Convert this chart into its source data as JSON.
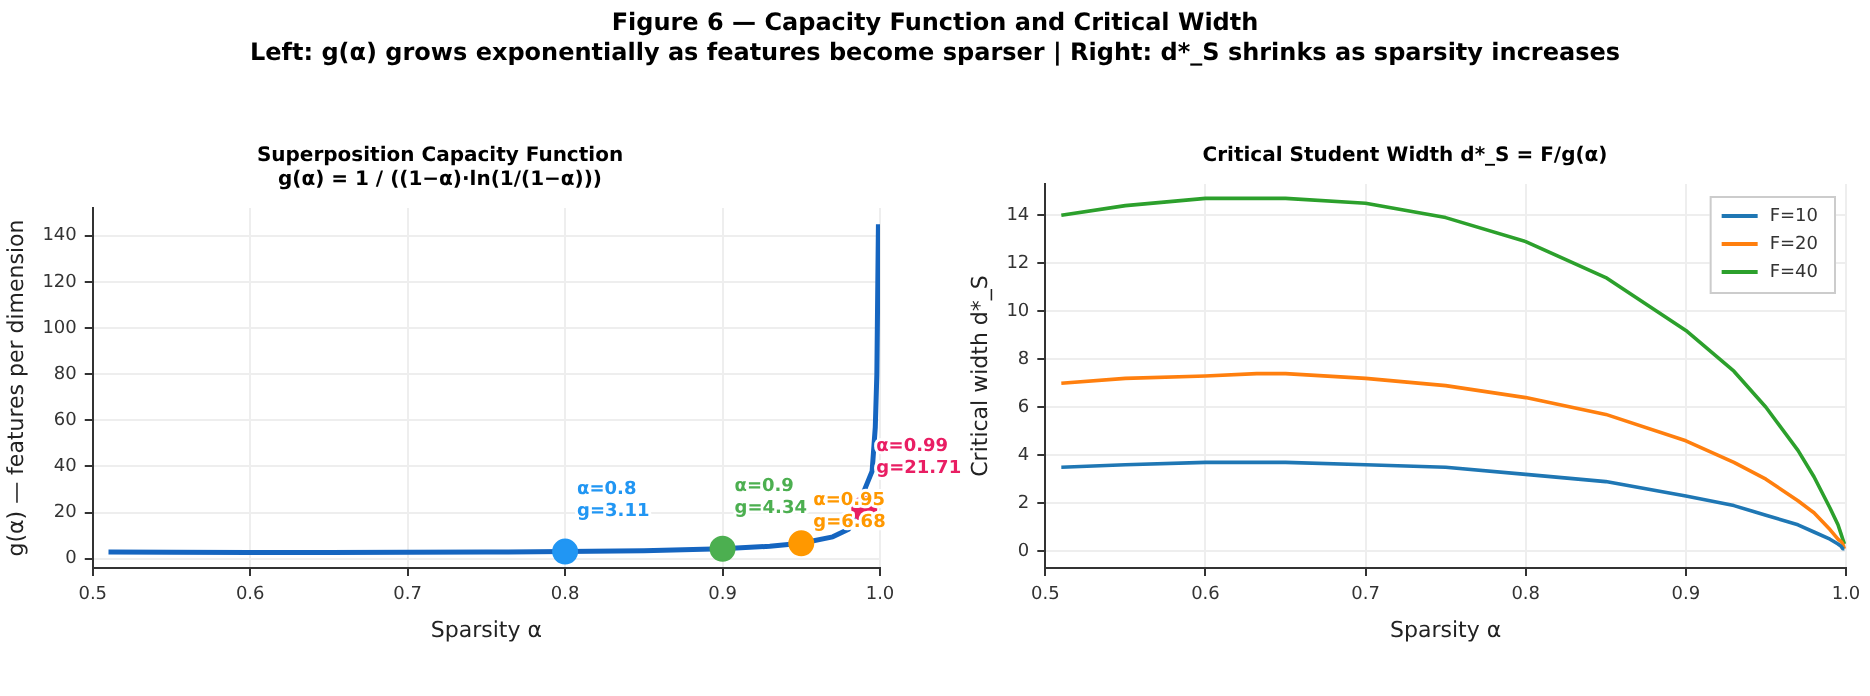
{
  "chart_data": [
    {
      "type": "line",
      "title": "Superposition Capacity Function\ng(α) = 1 / ((1−α)·ln(1/(1−α)))",
      "xlabel": "Sparsity α",
      "ylabel": "g(α) — features per dimension",
      "annotations": [
        "Figure 6 — Capacity Function and Critical Width",
        "Left: g(α) grows exponentially as features become sparser  |  Right: d*_S shrinks as sparsity increases"
      ],
      "series": [
        {
          "type": "line",
          "color": "#1565c0",
          "x": [
            0.51,
            0.55,
            0.6,
            0.632,
            0.65,
            0.7,
            0.75,
            0.8,
            0.85,
            0.9,
            0.93,
            0.95,
            0.97,
            0.98,
            0.995,
            0.997,
            0.998,
            0.999
          ],
          "values": [
            2.9,
            2.8,
            2.7,
            2.7,
            2.7,
            2.8,
            2.9,
            3.1,
            3.5,
            4.3,
            5.4,
            6.7,
            9.5,
            12.8,
            38,
            57,
            80,
            145
          ]
        },
        {
          "type": "scatter",
          "marker": "circle",
          "x": [
            0.8,
            0.9,
            0.95,
            0.99
          ],
          "values": [
            3.11,
            4.34,
            6.68,
            21.71
          ],
          "colors": [
            "#2196f3",
            "#4caf50",
            "#ff9800",
            "#e91e63"
          ],
          "value_labels": [
            "α=0.8\ng=3.11",
            "α=0.9\ng=4.34",
            "α=0.95\ng=6.68",
            "α=0.99\ng=21.71"
          ]
        }
      ],
      "xlim": [
        0.5,
        1.0
      ],
      "xticks": [
        0.5,
        0.6,
        0.7,
        0.8,
        0.9,
        {
          "value": 1.0,
          "label": "1.0"
        }
      ],
      "ylim": [
        -4,
        152
      ],
      "yticks": [
        0,
        20,
        40,
        60,
        80,
        100,
        120,
        140
      ],
      "grid": true,
      "legend": false
    },
    {
      "type": "line",
      "title": "Critical Student Width d*_S = F/g(α)",
      "xlabel": "Sparsity α",
      "ylabel": "Critical width d*_S",
      "x": [
        0.51,
        0.55,
        0.6,
        0.632,
        0.65,
        0.7,
        0.75,
        0.8,
        0.85,
        0.9,
        0.93,
        0.95,
        0.97,
        0.98,
        0.99,
        0.995,
        0.997,
        0.998,
        0.999
      ],
      "series": [
        {
          "name": "F=10",
          "color": "#1f77b4",
          "values": [
            3.5,
            3.6,
            3.7,
            3.7,
            3.7,
            3.6,
            3.5,
            3.2,
            2.9,
            2.3,
            1.9,
            1.5,
            1.1,
            0.8,
            0.5,
            0.3,
            0.2,
            0.1,
            0.1
          ]
        },
        {
          "name": "F=20",
          "color": "#ff7f0e",
          "values": [
            7.0,
            7.2,
            7.3,
            7.4,
            7.4,
            7.2,
            6.9,
            6.4,
            5.7,
            4.6,
            3.7,
            3.0,
            2.1,
            1.6,
            0.9,
            0.5,
            0.4,
            0.3,
            0.1
          ]
        },
        {
          "name": "F=40",
          "color": "#2ca02c",
          "values": [
            14.0,
            14.4,
            14.7,
            14.7,
            14.7,
            14.5,
            13.9,
            12.9,
            11.4,
            9.2,
            7.5,
            6.0,
            4.2,
            3.1,
            1.8,
            1.1,
            0.7,
            0.5,
            0.3
          ]
        }
      ],
      "xlim": [
        0.5,
        1.0
      ],
      "xticks": [
        0.5,
        0.6,
        0.7,
        0.8,
        0.9,
        {
          "value": 1.0,
          "label": "1.0"
        }
      ],
      "ylim": [
        -0.7,
        15.3
      ],
      "yticks": [
        0,
        2,
        4,
        6,
        8,
        10,
        12,
        14
      ],
      "grid": true,
      "legend": "top right"
    }
  ]
}
